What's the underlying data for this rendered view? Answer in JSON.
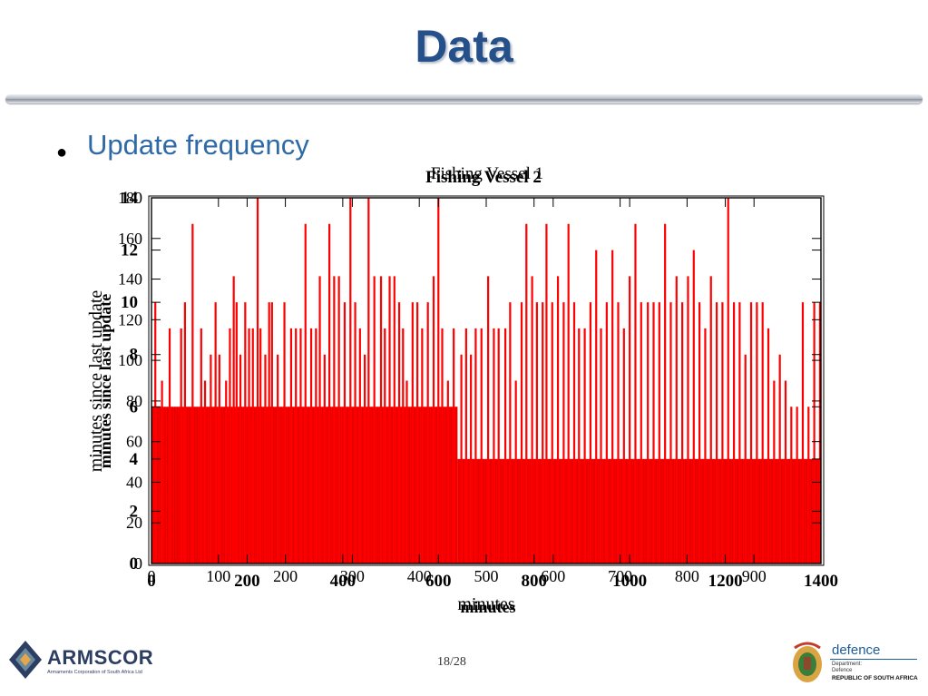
{
  "slide": {
    "title": "Data",
    "bullet": "Update frequency",
    "page_number": "18/28"
  },
  "logos": {
    "armscor": {
      "name": "ARMSCOR",
      "subtitle": "Armaments Corporation of South Africa Ltd"
    },
    "defence": {
      "word": "defence",
      "line1": "Department:",
      "line2": "Defence",
      "line3": "REPUBLIC OF SOUTH AFRICA"
    }
  },
  "colors": {
    "title": "#25508a",
    "bullet_text": "#2f6aa6",
    "series": "#ff0000"
  },
  "chart_data": {
    "type": "bar",
    "title_overlay": [
      "Fishing Vessel 1",
      "Fishing Vessel 2"
    ],
    "xlabel": "minutes",
    "ylabel": "minutes since last update",
    "series_color": "#ff0000",
    "axes": [
      {
        "xlim": [
          0,
          1400
        ],
        "ylim": [
          0,
          14
        ],
        "xticks": [
          "0",
          "200",
          "400",
          "600",
          "800",
          "1000",
          "1200",
          "1400"
        ],
        "yticks": [
          "0",
          "2",
          "4",
          "6",
          "8",
          "10",
          "12",
          "14"
        ]
      },
      {
        "xlim": [
          0,
          1000
        ],
        "ylim": [
          0,
          180
        ],
        "xticks": [
          "0",
          "100",
          "200",
          "300",
          "400",
          "500",
          "600",
          "700",
          "800",
          "900"
        ],
        "yticks": [
          "0",
          "20",
          "40",
          "60",
          "80",
          "100",
          "120",
          "140",
          "160",
          "180"
        ]
      }
    ],
    "baseline_regions": [
      {
        "x_start": 0,
        "x_end": 640,
        "value": 6
      },
      {
        "x_start": 640,
        "x_end": 1400,
        "value": 4
      }
    ],
    "spikes": {
      "x": [
        8,
        22,
        38,
        62,
        70,
        86,
        104,
        112,
        124,
        134,
        142,
        156,
        164,
        172,
        178,
        186,
        196,
        204,
        212,
        222,
        228,
        238,
        246,
        252,
        264,
        278,
        292,
        302,
        312,
        322,
        334,
        344,
        352,
        362,
        372,
        382,
        392,
        404,
        416,
        426,
        436,
        446,
        454,
        466,
        480,
        488,
        498,
        508,
        518,
        526,
        534,
        546,
        556,
        566,
        578,
        590,
        600,
        608,
        620,
        632,
        648,
        658,
        668,
        678,
        690,
        704,
        716,
        726,
        740,
        750,
        762,
        774,
        784,
        796,
        806,
        818,
        826,
        838,
        850,
        862,
        872,
        884,
        894,
        906,
        918,
        930,
        940,
        952,
        964,
        976,
        988,
        1000,
        1012,
        1024,
        1038,
        1050,
        1062,
        1074,
        1086,
        1098,
        1110,
        1122,
        1134,
        1146,
        1158,
        1170,
        1182,
        1194,
        1206,
        1218,
        1230,
        1242,
        1254,
        1266,
        1278,
        1290,
        1302,
        1314,
        1326,
        1338,
        1350,
        1362,
        1374,
        1386,
        1398
      ],
      "values": [
        10,
        7,
        9,
        9,
        10,
        13,
        9,
        7,
        8,
        10,
        8,
        7,
        9,
        11,
        10,
        8,
        10,
        9,
        9,
        15,
        9,
        8,
        10,
        10,
        8,
        10,
        9,
        9,
        9,
        13,
        9,
        9,
        11,
        8,
        13,
        11,
        11,
        10,
        15,
        10,
        9,
        8,
        15,
        11,
        11,
        9,
        11,
        11,
        10,
        9,
        7,
        10,
        10,
        9,
        10,
        11,
        15,
        9,
        7,
        9,
        8,
        9,
        8,
        9,
        9,
        11,
        9,
        9,
        9,
        10,
        7,
        10,
        13,
        11,
        10,
        10,
        13,
        10,
        11,
        10,
        13,
        10,
        9,
        9,
        10,
        12,
        9,
        10,
        12,
        10,
        9,
        11,
        13,
        10,
        10,
        10,
        10,
        13,
        10,
        11,
        10,
        11,
        12,
        10,
        9,
        11,
        10,
        10,
        14,
        10,
        10,
        8,
        10,
        10,
        10,
        9,
        7,
        8,
        7,
        6,
        6,
        10,
        6,
        10,
        10
      ]
    }
  }
}
